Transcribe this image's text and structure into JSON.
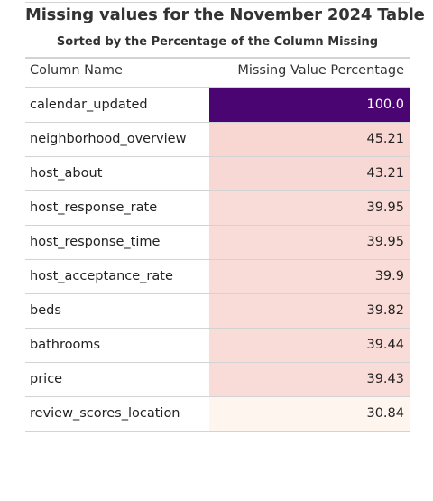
{
  "title": "Missing values for the November 2024 Table",
  "subtitle": "Sorted by the Percentage of the Column Missing",
  "columns": {
    "name": "Column Name",
    "value": "Missing Value Percentage"
  },
  "colors": {
    "max": "#4a0572",
    "high": "#f8d8d5",
    "low": "#fef5ec"
  },
  "chart_data": {
    "type": "table",
    "columns": [
      "Column Name",
      "Missing Value Percentage"
    ],
    "rows": [
      {
        "name": "calendar_updated",
        "value": "100.0",
        "fill": "#4a0572",
        "dark_text": true
      },
      {
        "name": "neighborhood_overview",
        "value": "45.21",
        "fill": "#f8d7d3",
        "dark_text": false
      },
      {
        "name": "host_about",
        "value": "43.21",
        "fill": "#f8d8d4",
        "dark_text": false
      },
      {
        "name": "host_response_rate",
        "value": "39.95",
        "fill": "#f9dcd7",
        "dark_text": false
      },
      {
        "name": "host_response_time",
        "value": "39.95",
        "fill": "#f9dcd7",
        "dark_text": false
      },
      {
        "name": "host_acceptance_rate",
        "value": "39.9",
        "fill": "#f9dcd7",
        "dark_text": false
      },
      {
        "name": "beds",
        "value": "39.82",
        "fill": "#f9dcd7",
        "dark_text": false
      },
      {
        "name": "bathrooms",
        "value": "39.44",
        "fill": "#f9dcd7",
        "dark_text": false
      },
      {
        "name": "price",
        "value": "39.43",
        "fill": "#f9dcd7",
        "dark_text": false
      },
      {
        "name": "review_scores_location",
        "value": "30.84",
        "fill": "#fef6ee",
        "dark_text": false
      }
    ]
  }
}
